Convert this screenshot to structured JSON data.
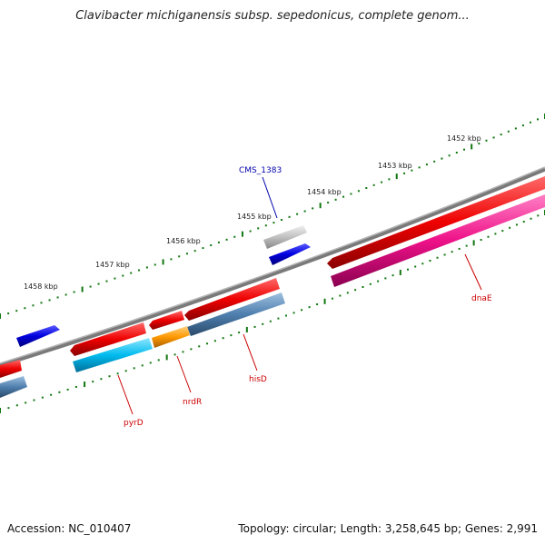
{
  "title": "Clavibacter michiganensis subsp. sepedonicus, complete genom...",
  "footer": {
    "accession_label": "Accession: NC_010407",
    "topology_label": "Topology: circular; Length: 3,258,645 bp; Genes: 2,991"
  },
  "ticks": [
    {
      "kbp": 1458,
      "label": "1458 kbp"
    },
    {
      "kbp": 1457,
      "label": "1457 kbp"
    },
    {
      "kbp": 1456,
      "label": "1456 kbp"
    },
    {
      "kbp": 1455,
      "label": "1455 kbp"
    },
    {
      "kbp": 1454,
      "label": "1454 kbp"
    },
    {
      "kbp": 1453,
      "label": "1453 kbp"
    },
    {
      "kbp": 1452,
      "label": "1452 kbp"
    }
  ],
  "genes": [
    {
      "label": "CMS_1383",
      "label_color": "#0000aa"
    },
    {
      "label": "dnaE",
      "label_color": "#cc0000"
    },
    {
      "label": "hisD",
      "label_color": "#cc0000"
    },
    {
      "label": "nrdR",
      "label_color": "#cc0000"
    },
    {
      "label": "pyrD",
      "label_color": "#cc0000"
    }
  ],
  "colors": {
    "cds": "#ee0000",
    "gene_blue": "#0000dd",
    "gene_grey": "#b8b8b8",
    "cyan": "#00bbee",
    "steelblue": "#4f7fae",
    "orange": "#ff9900",
    "magenta": "#ee1188",
    "backbone": "#808080",
    "tick_green": "#117711"
  }
}
